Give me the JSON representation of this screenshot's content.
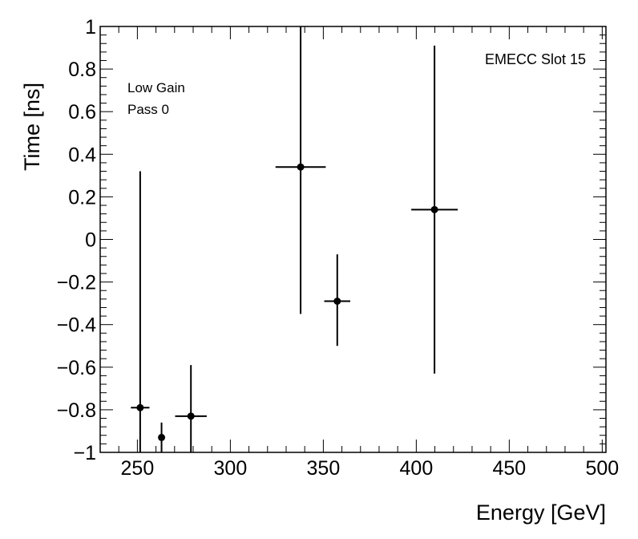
{
  "chart_data": {
    "type": "scatter",
    "xlabel": "Energy [GeV]",
    "ylabel": "Time [ns]",
    "xlim": [
      230,
      502
    ],
    "ylim": [
      -1,
      1
    ],
    "x_ticks": [
      250,
      300,
      350,
      400,
      450,
      500
    ],
    "y_ticks": [
      -1,
      -0.8,
      -0.6,
      -0.4,
      -0.2,
      0,
      0.2,
      0.4,
      0.6,
      0.8,
      1
    ],
    "x_tick_labels": [
      "250",
      "300",
      "350",
      "400",
      "450",
      "500"
    ],
    "y_tick_labels": [
      "−1",
      "−0.8",
      "−0.6",
      "−0.4",
      "−0.2",
      "0",
      "0.2",
      "0.4",
      "0.6",
      "0.8",
      "1"
    ],
    "grid": false,
    "annotations": {
      "gain": "Low Gain",
      "pass": "Pass 0",
      "slot": "EMECC Slot 15"
    },
    "points": [
      {
        "x": 251.5,
        "y": -0.79,
        "xerr": 5,
        "yerr_low": 0.25,
        "yerr_high": 1.11
      },
      {
        "x": 263,
        "y": -0.93,
        "xerr": 0,
        "yerr_low": 0.07,
        "yerr_high": 0.07
      },
      {
        "x": 278.8,
        "y": -0.83,
        "xerr": 8.5,
        "yerr_low": 0.17,
        "yerr_high": 0.24
      },
      {
        "x": 337.8,
        "y": 0.34,
        "xerr": 13.5,
        "yerr_low": 0.69,
        "yerr_high": 0.66
      },
      {
        "x": 357.5,
        "y": -0.29,
        "xerr": 7,
        "yerr_low": 0.21,
        "yerr_high": 0.22
      },
      {
        "x": 409.8,
        "y": 0.14,
        "xerr": 12.5,
        "yerr_low": 0.77,
        "yerr_high": 0.77
      }
    ],
    "colors": {
      "marker": "#000000",
      "axis": "#000000"
    }
  }
}
